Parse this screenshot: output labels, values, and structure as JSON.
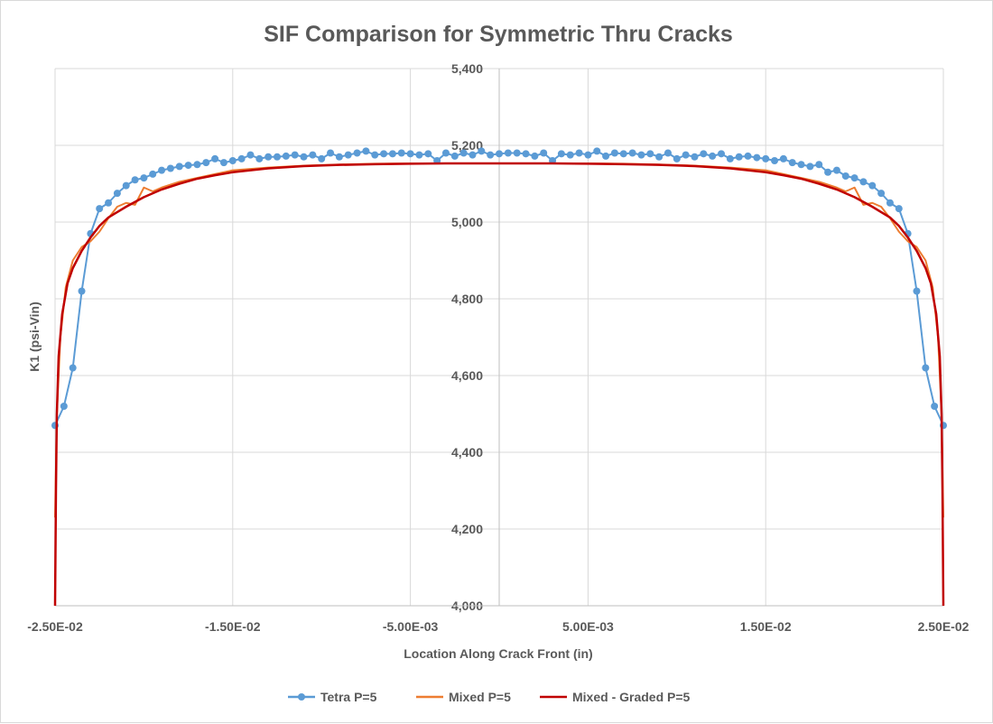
{
  "chart_data": {
    "type": "line",
    "title": "SIF Comparison for Symmetric Thru Cracks",
    "xlabel": "Location Along Crack Front (in)",
    "ylabel": "K1 (psi-Vin)",
    "xlim": [
      -0.025,
      0.025
    ],
    "ylim": [
      4000,
      5400
    ],
    "x_ticks": [
      -0.025,
      -0.015,
      -0.005,
      0.005,
      0.015,
      0.025
    ],
    "x_tick_labels": [
      "-2.50E-02",
      "-1.50E-02",
      "-5.00E-03",
      "5.00E-03",
      "1.50E-02",
      "2.50E-02"
    ],
    "y_ticks": [
      4000,
      4200,
      4400,
      4600,
      4800,
      5000,
      5200,
      5400
    ],
    "y_tick_labels": [
      "4,000",
      "4,200",
      "4,400",
      "4,600",
      "4,800",
      "5,000",
      "5,200",
      "5,400"
    ],
    "grid": true,
    "legend_position": "bottom",
    "series": [
      {
        "name": "Tetra P=5",
        "color": "#5b9bd5",
        "marker": "circle",
        "x": [
          -0.025,
          -0.0245,
          -0.024,
          -0.0235,
          -0.023,
          -0.0225,
          -0.022,
          -0.0215,
          -0.021,
          -0.0205,
          -0.02,
          -0.0195,
          -0.019,
          -0.0185,
          -0.018,
          -0.0175,
          -0.017,
          -0.0165,
          -0.016,
          -0.0155,
          -0.015,
          -0.0145,
          -0.014,
          -0.0135,
          -0.013,
          -0.0125,
          -0.012,
          -0.0115,
          -0.011,
          -0.0105,
          -0.01,
          -0.0095,
          -0.009,
          -0.0085,
          -0.008,
          -0.0075,
          -0.007,
          -0.0065,
          -0.006,
          -0.0055,
          -0.005,
          -0.0045,
          -0.004,
          -0.0035,
          -0.003,
          -0.0025,
          -0.002,
          -0.0015,
          -0.001,
          -0.0005,
          0,
          0.0005,
          0.001,
          0.0015,
          0.002,
          0.0025,
          0.003,
          0.0035,
          0.004,
          0.0045,
          0.005,
          0.0055,
          0.006,
          0.0065,
          0.007,
          0.0075,
          0.008,
          0.0085,
          0.009,
          0.0095,
          0.01,
          0.0105,
          0.011,
          0.0115,
          0.012,
          0.0125,
          0.013,
          0.0135,
          0.014,
          0.0145,
          0.015,
          0.0155,
          0.016,
          0.0165,
          0.017,
          0.0175,
          0.018,
          0.0185,
          0.019,
          0.0195,
          0.02,
          0.0205,
          0.021,
          0.0215,
          0.022,
          0.0225,
          0.023,
          0.0235,
          0.024,
          0.0245,
          0.025
        ],
        "y": [
          4470,
          4520,
          4620,
          4820,
          4970,
          5035,
          5050,
          5075,
          5095,
          5110,
          5115,
          5125,
          5135,
          5140,
          5145,
          5148,
          5150,
          5155,
          5165,
          5155,
          5160,
          5165,
          5175,
          5165,
          5170,
          5170,
          5172,
          5175,
          5170,
          5175,
          5165,
          5180,
          5170,
          5175,
          5180,
          5185,
          5175,
          5178,
          5178,
          5180,
          5178,
          5175,
          5178,
          5160,
          5180,
          5172,
          5180,
          5175,
          5185,
          5175,
          5178,
          5180,
          5180,
          5178,
          5172,
          5180,
          5160,
          5178,
          5175,
          5180,
          5175,
          5185,
          5172,
          5180,
          5178,
          5180,
          5175,
          5178,
          5170,
          5180,
          5165,
          5175,
          5170,
          5178,
          5172,
          5178,
          5165,
          5170,
          5172,
          5168,
          5165,
          5160,
          5165,
          5155,
          5150,
          5145,
          5150,
          5130,
          5135,
          5120,
          5115,
          5105,
          5095,
          5075,
          5050,
          5035,
          4970,
          4820,
          4620,
          4520,
          4470
        ]
      },
      {
        "name": "Mixed P=5",
        "color": "#ed7d31",
        "marker": "none",
        "x": [
          -0.025,
          -0.0249,
          -0.0247,
          -0.0244,
          -0.024,
          -0.0235,
          -0.023,
          -0.0225,
          -0.022,
          -0.0215,
          -0.021,
          -0.0205,
          -0.02,
          -0.0195,
          -0.019,
          -0.018,
          -0.017,
          -0.016,
          -0.015,
          -0.013,
          -0.011,
          -0.009,
          -0.007,
          -0.005,
          -0.003,
          -0.001,
          0,
          0.001,
          0.003,
          0.005,
          0.007,
          0.009,
          0.011,
          0.013,
          0.015,
          0.016,
          0.017,
          0.018,
          0.019,
          0.0195,
          0.02,
          0.0205,
          0.021,
          0.0215,
          0.022,
          0.0225,
          0.023,
          0.0235,
          0.024,
          0.0244,
          0.0247,
          0.0249,
          0.025
        ],
        "y": [
          4230,
          4500,
          4700,
          4830,
          4900,
          4935,
          4950,
          4975,
          5010,
          5040,
          5050,
          5045,
          5090,
          5080,
          5090,
          5105,
          5115,
          5125,
          5135,
          5142,
          5147,
          5150,
          5152,
          5153,
          5153,
          5153,
          5153,
          5153,
          5153,
          5153,
          5152,
          5150,
          5147,
          5142,
          5135,
          5125,
          5115,
          5105,
          5090,
          5080,
          5090,
          5045,
          5050,
          5040,
          5010,
          4975,
          4950,
          4935,
          4900,
          4830,
          4700,
          4500,
          4230
        ]
      },
      {
        "name": "Mixed - Graded P=5",
        "color": "#c00000",
        "marker": "none",
        "x": [
          -0.025,
          -0.02495,
          -0.0249,
          -0.0248,
          -0.0246,
          -0.0243,
          -0.024,
          -0.0235,
          -0.023,
          -0.0225,
          -0.022,
          -0.021,
          -0.02,
          -0.019,
          -0.018,
          -0.017,
          -0.016,
          -0.015,
          -0.013,
          -0.011,
          -0.009,
          -0.007,
          -0.005,
          -0.003,
          -0.001,
          0,
          0.001,
          0.003,
          0.005,
          0.007,
          0.009,
          0.011,
          0.013,
          0.015,
          0.016,
          0.017,
          0.018,
          0.019,
          0.02,
          0.021,
          0.022,
          0.0225,
          0.023,
          0.0235,
          0.024,
          0.0243,
          0.0246,
          0.0248,
          0.0249,
          0.02495,
          0.025
        ],
        "y": [
          4000,
          4300,
          4500,
          4650,
          4760,
          4840,
          4880,
          4925,
          4960,
          4990,
          5012,
          5040,
          5065,
          5085,
          5100,
          5113,
          5122,
          5130,
          5140,
          5146,
          5149,
          5151,
          5152,
          5153,
          5153,
          5153,
          5153,
          5153,
          5152,
          5151,
          5149,
          5146,
          5140,
          5130,
          5122,
          5113,
          5100,
          5085,
          5065,
          5040,
          5012,
          4990,
          4960,
          4925,
          4880,
          4840,
          4760,
          4650,
          4500,
          4300,
          4000
        ]
      }
    ]
  }
}
